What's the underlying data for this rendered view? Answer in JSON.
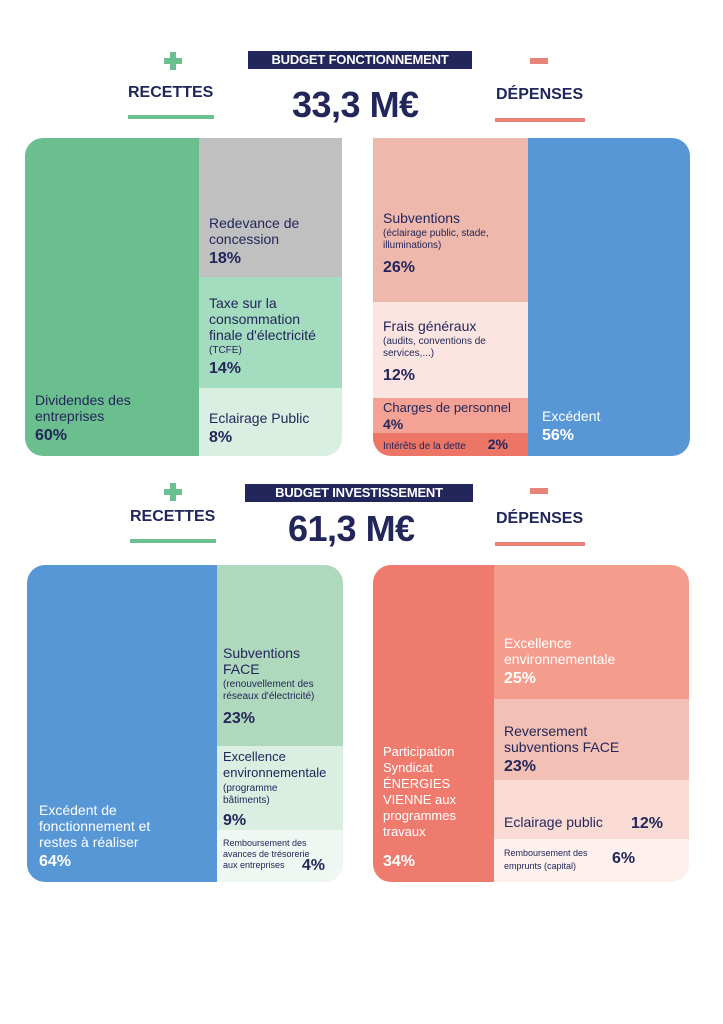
{
  "fonctionnement": {
    "banner_a": "BUDGET",
    "banner_b": "FONCTIONNEMENT",
    "total": "33,3 M€",
    "recettes_label": "RECETTES",
    "depenses_label": "DÉPENSES",
    "recettes": [
      {
        "label": "Dividendes des entreprises",
        "pct": "60%"
      },
      {
        "label": "Redevance de concession",
        "pct": "18%"
      },
      {
        "label": "Taxe sur la consommation finale d'électricité",
        "sub": "(TCFE)",
        "pct": "14%"
      },
      {
        "label": "Eclairage Public",
        "pct": "8%"
      }
    ],
    "depenses": [
      {
        "label": "Subventions",
        "sub": "(éclairage public, stade, illuminations)",
        "pct": "26%"
      },
      {
        "label": "Frais généraux",
        "sub": "(audits, conventions de services,...)",
        "pct": "12%"
      },
      {
        "label": "Charges de personnel",
        "pct": "4%"
      },
      {
        "label": "Intérêts de la dette",
        "pct": "2%"
      },
      {
        "label": "Excédent",
        "pct": "56%"
      }
    ]
  },
  "investissement": {
    "banner_a": "BUDGET",
    "banner_b": "INVESTISSEMENT",
    "total": "61,3 M€",
    "recettes_label": "RECETTES",
    "depenses_label": "DÉPENSES",
    "recettes": [
      {
        "label": "Excédent de fonctionnement et restes à réaliser",
        "pct": "64%"
      },
      {
        "label": "Subventions FACE",
        "sub": "(renouvellement des réseaux d'électricité)",
        "pct": "23%"
      },
      {
        "label": "Excellence environnementale",
        "sub": "(programme bâtiments)",
        "pct": "9%"
      },
      {
        "label": "Remboursement des avances de trésorerie aux entreprises",
        "pct": "4%"
      }
    ],
    "depenses": [
      {
        "label": "Participation Syndicat ÉNERGIES VIENNE aux programmes travaux",
        "pct": "34%"
      },
      {
        "label": "Excellence environnementale",
        "pct": "25%"
      },
      {
        "label": "Reversement subventions FACE",
        "pct": "23%"
      },
      {
        "label": "Eclairage public",
        "pct": "12%"
      },
      {
        "label": "Remboursement des emprunts (capital)",
        "pct": "6%"
      }
    ]
  },
  "colors": {
    "navy": "#23265a",
    "green_line": "#6cbf8e",
    "red_line": "#e8837a"
  }
}
